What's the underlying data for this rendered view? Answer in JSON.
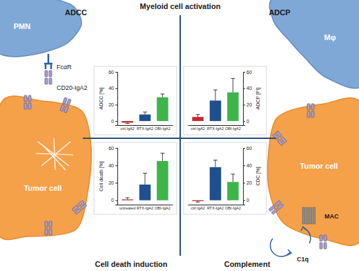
{
  "chart_data": [
    {
      "type": "bar",
      "ylabel": "ADCC [%]",
      "categories": [
        "ctrl.IgA2",
        "RTX-IgA2",
        "OBI-IgA2"
      ],
      "values": [
        -2,
        8,
        29
      ],
      "errors": [
        1,
        3,
        4
      ],
      "colors": [
        "#c8282e",
        "#1f4f8f",
        "#3db54a"
      ],
      "ylim": [
        -5,
        60
      ],
      "yticks": [
        0,
        20,
        40,
        60
      ]
    },
    {
      "type": "bar",
      "ylabel": "ADCP [PI]",
      "categories": [
        "ctrl.IgA2",
        "RTX-IgA2",
        "OBI-IgA2"
      ],
      "values": [
        5,
        25,
        35
      ],
      "errors": [
        3,
        13,
        17
      ],
      "colors": [
        "#c8282e",
        "#1f4f8f",
        "#3db54a"
      ],
      "ylim": [
        -5,
        60
      ],
      "yticks": [
        0,
        20,
        40,
        60
      ]
    },
    {
      "type": "bar",
      "ylabel": "Cell death [%]",
      "categories": [
        "untreated",
        "RTX-IgA2",
        "OBI-IgA2"
      ],
      "values": [
        1,
        18,
        45
      ],
      "errors": [
        2,
        13,
        9
      ],
      "colors": [
        "#c8282e",
        "#1f4f8f",
        "#3db54a"
      ],
      "ylim": [
        -5,
        60
      ],
      "yticks": [
        0,
        20,
        40,
        60
      ]
    },
    {
      "type": "bar",
      "ylabel": "CDC [%]",
      "categories": [
        "ctrl.IgA2",
        "RTX-IgA2",
        "OBI-IgA2"
      ],
      "values": [
        -1,
        38,
        21
      ],
      "errors": [
        1,
        8,
        9
      ],
      "colors": [
        "#c8282e",
        "#1f4f8f",
        "#3db54a"
      ],
      "ylim": [
        -5,
        60
      ],
      "yticks": [
        0,
        20,
        40,
        60
      ]
    }
  ],
  "diagram": {
    "title": "Myeloid cell activation",
    "quadrants": [
      "ADCC",
      "ADCP",
      "Cell death induction",
      "Complement"
    ],
    "labels": {
      "pmn": "PMN",
      "receptor": "FcαR",
      "antibody": "CD20-IgA2",
      "tumor_left": "Tumor cell",
      "macrophage": "Mφ",
      "tumor_right": "Tumor cell",
      "mac": "MAC",
      "c1q": "C1q"
    }
  }
}
